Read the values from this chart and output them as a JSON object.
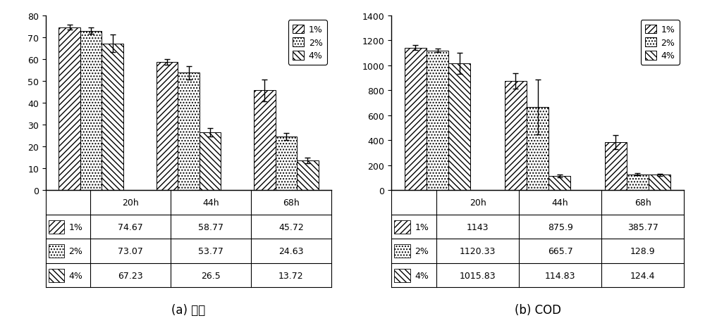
{
  "left_chart": {
    "title": "(a) 氨氮",
    "groups": [
      "20h",
      "44h",
      "68h"
    ],
    "series": {
      "1%": [
        74.67,
        58.77,
        45.72
      ],
      "2%": [
        73.07,
        53.77,
        24.63
      ],
      "4%": [
        67.23,
        26.5,
        13.72
      ]
    },
    "errors": {
      "1%": [
        1.0,
        1.2,
        5.0
      ],
      "2%": [
        1.5,
        3.0,
        1.5
      ],
      "4%": [
        4.0,
        2.0,
        1.2
      ]
    },
    "ylim": [
      0,
      80
    ],
    "yticks": [
      0,
      10,
      20,
      30,
      40,
      50,
      60,
      70,
      80
    ],
    "table_data": [
      [
        "",
        "20h",
        "44h",
        "68h"
      ],
      [
        "1%",
        "74.67",
        "58.77",
        "45.72"
      ],
      [
        "2%",
        "73.07",
        "53.77",
        "24.63"
      ],
      [
        "4%",
        "67.23",
        "26.5",
        "13.72"
      ]
    ]
  },
  "right_chart": {
    "title": "(b) COD",
    "groups": [
      "20h",
      "44h",
      "68h"
    ],
    "series": {
      "1%": [
        1143,
        875.9,
        385.77
      ],
      "2%": [
        1120.33,
        665.7,
        128.9
      ],
      "4%": [
        1015.83,
        114.83,
        124.4
      ]
    },
    "errors": {
      "1%": [
        20,
        60,
        55
      ],
      "2%": [
        15,
        220,
        10
      ],
      "4%": [
        85,
        10,
        10
      ]
    },
    "ylim": [
      0,
      1400
    ],
    "yticks": [
      0,
      200,
      400,
      600,
      800,
      1000,
      1200,
      1400
    ],
    "table_data": [
      [
        "",
        "20h",
        "44h",
        "68h"
      ],
      [
        "1%",
        "1143",
        "875.9",
        "385.77"
      ],
      [
        "2%",
        "1120.33",
        "665.7",
        "128.9"
      ],
      [
        "4%",
        "1015.83",
        "114.83",
        "124.4"
      ]
    ]
  },
  "series_labels": [
    "1%",
    "2%",
    "4%"
  ],
  "hatches": [
    "////",
    "....",
    "\\\\\\\\"
  ],
  "bar_width": 0.22,
  "background_color": "#ffffff",
  "font_size": 9,
  "legend_font_size": 9,
  "table_font_size": 9
}
